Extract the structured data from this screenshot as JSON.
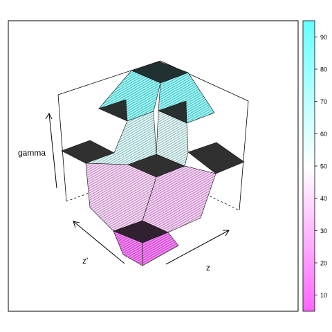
{
  "chart_data": {
    "type": "surface3d",
    "xlabel": "z",
    "ylabel": "z'",
    "zlabel": "gamma",
    "colorkey": {
      "ticks": [
        10,
        20,
        30,
        40,
        50,
        60,
        70,
        80,
        90
      ],
      "range": [
        5,
        95
      ],
      "low_color": "#ff66ff",
      "mid_color": "#ffffff",
      "high_color": "#66ffff"
    },
    "z_levels": {
      "plateau_low": 5,
      "plateau_mid_low": 28,
      "plateau_mid": 50,
      "plateau_mid_high": 72,
      "plateau_high": 95
    }
  },
  "labels": {
    "x": "z",
    "y": "z'",
    "z": "gamma"
  }
}
